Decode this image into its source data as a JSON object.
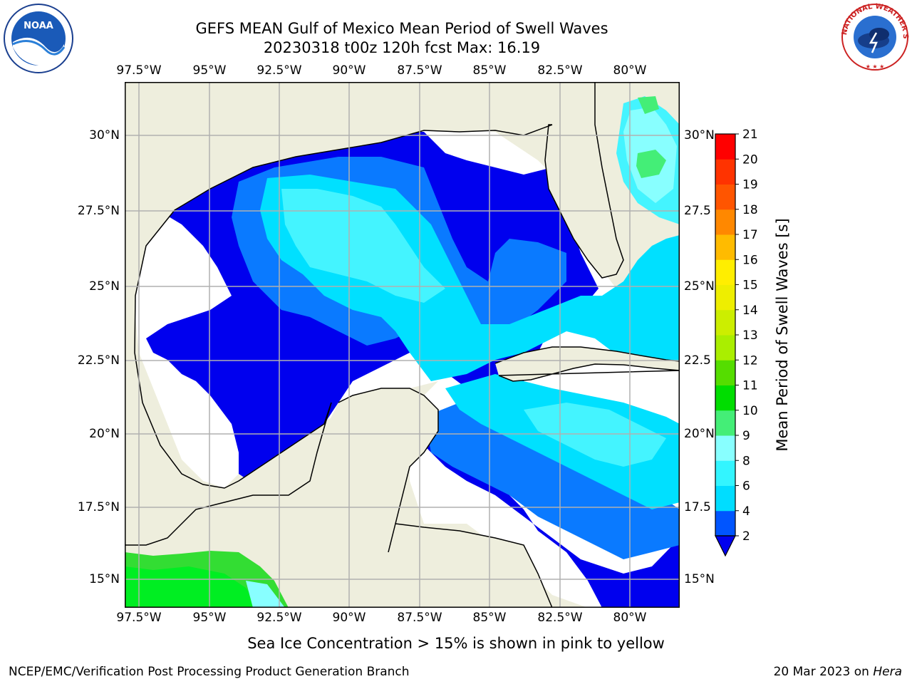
{
  "header": {
    "title_line1": "GEFS MEAN Gulf of Mexico Mean Period of Swell Waves",
    "title_line2": "20230318 t00z 120h fcst   Max: 16.19"
  },
  "map": {
    "lon_labels": [
      "97.5°W",
      "95°W",
      "92.5°W",
      "90°W",
      "87.5°W",
      "85°W",
      "82.5°W",
      "80°W"
    ],
    "lat_labels_left": [
      "30°N",
      "27.5°N",
      "25°N",
      "22.5°N",
      "20°N",
      "17.5°N",
      "15°N"
    ],
    "lat_labels_right": [
      "30°N",
      "27.5",
      "25°N",
      "22.5",
      "20°N",
      "17.5",
      "15°N"
    ],
    "colors": {
      "land": "#eeeedd",
      "grid": "#b0b0b0",
      "coast": "#000000"
    }
  },
  "colorbar": {
    "label": "Mean Period of Swell Waves [s]",
    "ticks": [
      "21",
      "20",
      "19",
      "18",
      "17",
      "16",
      "15",
      "14",
      "13",
      "12",
      "11",
      "10",
      "9",
      "8",
      "6",
      "4",
      "2"
    ],
    "bins": [
      {
        "min": 2,
        "max": 4,
        "color": "#0055ff"
      },
      {
        "min": 4,
        "max": 6,
        "color": "#00ddff"
      },
      {
        "min": 6,
        "max": 8,
        "color": "#33f5ff"
      },
      {
        "min": 8,
        "max": 9,
        "color": "#88ffff"
      },
      {
        "min": 9,
        "max": 10,
        "color": "#44ee77"
      },
      {
        "min": 10,
        "max": 11,
        "color": "#00dd00"
      },
      {
        "min": 11,
        "max": 12,
        "color": "#55dd00"
      },
      {
        "min": 12,
        "max": 13,
        "color": "#aaee00"
      },
      {
        "min": 13,
        "max": 14,
        "color": "#ccee00"
      },
      {
        "min": 14,
        "max": 15,
        "color": "#eeee00"
      },
      {
        "min": 15,
        "max": 16,
        "color": "#ffee00"
      },
      {
        "min": 16,
        "max": 17,
        "color": "#ffbb00"
      },
      {
        "min": 17,
        "max": 18,
        "color": "#ff8800"
      },
      {
        "min": 18,
        "max": 19,
        "color": "#ff5500"
      },
      {
        "min": 19,
        "max": 20,
        "color": "#ff3300"
      },
      {
        "min": 20,
        "max": 21,
        "color": "#ff0000"
      }
    ],
    "under_color": "#0000ee"
  },
  "notes": {
    "ice_note": "Sea Ice Concentration > 15% is shown in pink to yellow",
    "footer_left": "NCEP/EMC/Verification Post Processing Product Generation Branch",
    "footer_date": "20 Mar 2023 on ",
    "footer_host": "Hera"
  },
  "logos": {
    "noaa_text": "NOAA",
    "nws_text": "NATIONAL WEATHER SERVICE"
  }
}
